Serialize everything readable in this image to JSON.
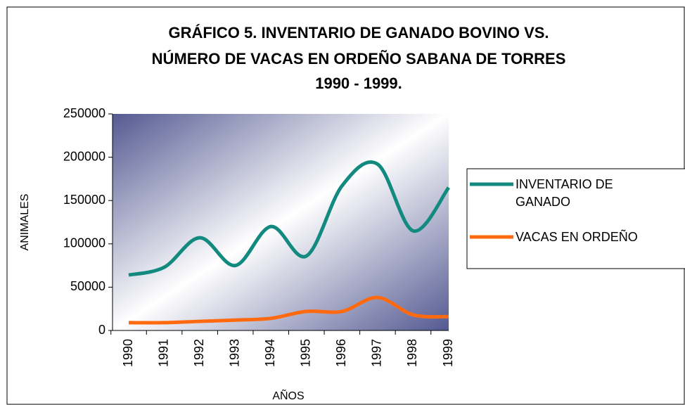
{
  "chart_data": {
    "type": "line",
    "title": [
      "GRÁFICO 5.   INVENTARIO DE GANADO BOVINO VS.",
      "NÚMERO DE VACAS EN ORDEÑO  SABANA DE TORRES",
      "1990 - 1999."
    ],
    "x_label": "AÑOS",
    "y_label": "ANIMALES",
    "categories": [
      "1990",
      "1991",
      "1992",
      "1993",
      "1994",
      "1995",
      "1996",
      "1997",
      "1998",
      "1999"
    ],
    "series": [
      {
        "name": "INVENTARIO DE GANADO",
        "color": "#128a80",
        "values": [
          64000,
          73000,
          107000,
          75000,
          120000,
          86000,
          167000,
          192000,
          115000,
          165000
        ]
      },
      {
        "name": "VACAS EN ORDEÑO",
        "color": "#ff6a10",
        "values": [
          9000,
          9000,
          10500,
          12000,
          14000,
          22000,
          22000,
          38000,
          18000,
          16000
        ]
      }
    ],
    "ylim": [
      0,
      250000
    ],
    "yticks": [
      0,
      50000,
      100000,
      150000,
      200000,
      250000
    ],
    "smooth": true,
    "legend": "right"
  }
}
